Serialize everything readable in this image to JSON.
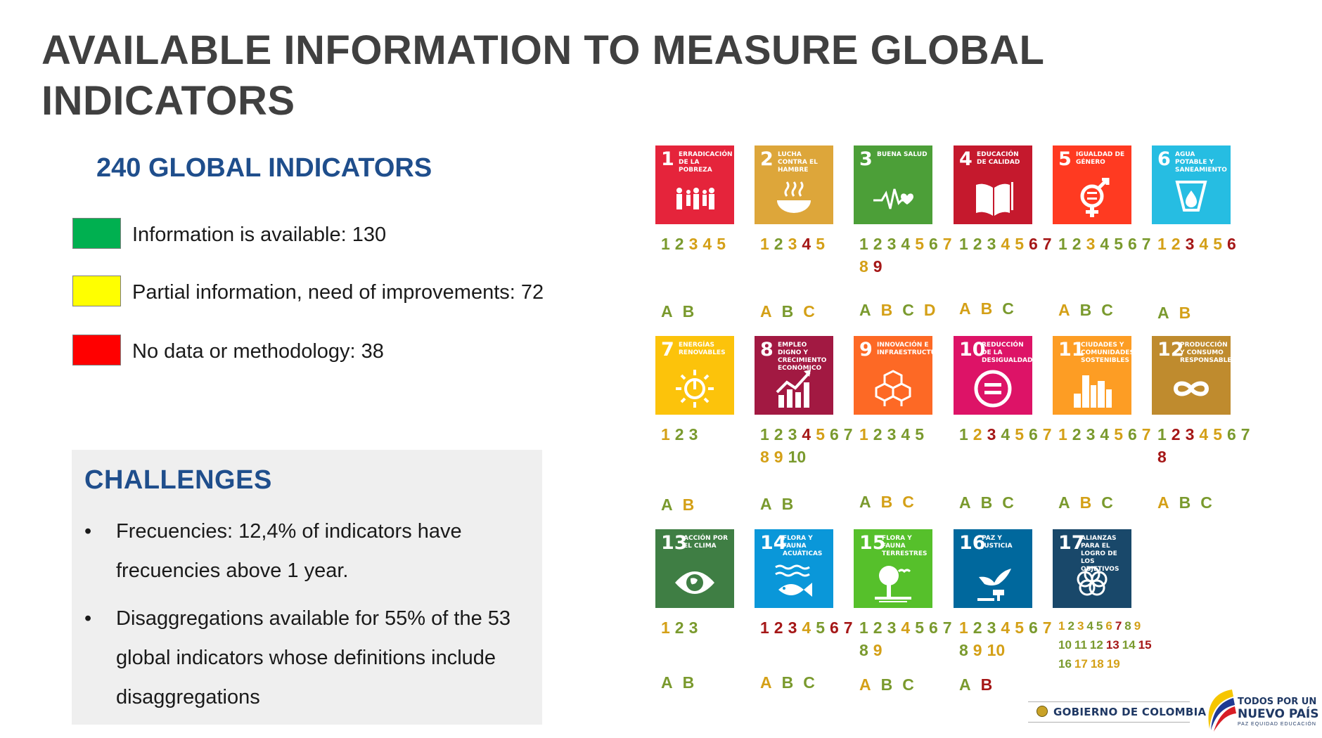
{
  "title": "AVAILABLE INFORMATION TO MEASURE GLOBAL INDICATORS",
  "subtitle": "240 GLOBAL INDICATORS",
  "colors": {
    "green": "#00b050",
    "yellow": "#ffff00",
    "red": "#ff0000",
    "g": "#7a9a2e",
    "y": "#d4a017",
    "r": "#a51717",
    "navy": "#1f4e8c"
  },
  "legend": [
    {
      "text": "Information is available: 130",
      "color": "#00b050"
    },
    {
      "text": "Partial information, need of improvements: 72",
      "color": "#ffff00"
    },
    {
      "text": "No data or methodology: 38",
      "color": "#ff0000"
    }
  ],
  "challenges": {
    "title": "CHALLENGES",
    "bullet": "•",
    "items": [
      "Frecuencies: 12,4% of indicators have frecuencies above 1 year.",
      "Disaggregations available for 55% of the 53 global indicators whose definitions include disaggregations"
    ]
  },
  "sdgs": [
    {
      "num": "1",
      "name": "Erradicación de la pobreza",
      "color": "#e5243b",
      "icon": "people-icon",
      "targets": [
        [
          "1",
          "g"
        ],
        [
          "2",
          "g"
        ],
        [
          "3",
          "y"
        ],
        [
          "4",
          "y"
        ],
        [
          "5",
          "y"
        ]
      ],
      "means": [
        [
          "A",
          "g"
        ],
        [
          "B",
          "g"
        ]
      ]
    },
    {
      "num": "2",
      "name": "Lucha contra el hambre",
      "color": "#dda63a",
      "icon": "bowl-icon",
      "targets": [
        [
          "1",
          "y"
        ],
        [
          "2",
          "g"
        ],
        [
          "3",
          "y"
        ],
        [
          "4",
          "r"
        ],
        [
          "5",
          "y"
        ]
      ],
      "means": [
        [
          "A",
          "y"
        ],
        [
          "B",
          "g"
        ],
        [
          "C",
          "y"
        ]
      ]
    },
    {
      "num": "3",
      "name": "Buena salud",
      "color": "#4c9f38",
      "icon": "heartbeat-icon",
      "targets": [
        [
          "1",
          "g"
        ],
        [
          "2",
          "g"
        ],
        [
          "3",
          "g"
        ],
        [
          "4",
          "g"
        ],
        [
          "5",
          "y"
        ],
        [
          "6",
          "g"
        ],
        [
          "7",
          "y"
        ],
        [
          "8",
          "y"
        ],
        [
          "9",
          "r"
        ]
      ],
      "means": [
        [
          "A",
          "g"
        ],
        [
          "B",
          "y"
        ],
        [
          "C",
          "g"
        ],
        [
          "D",
          "y"
        ]
      ]
    },
    {
      "num": "4",
      "name": "Educación de calidad",
      "color": "#c5192d",
      "icon": "book-icon",
      "targets": [
        [
          "1",
          "g"
        ],
        [
          "2",
          "g"
        ],
        [
          "3",
          "g"
        ],
        [
          "4",
          "y"
        ],
        [
          "5",
          "y"
        ],
        [
          "6",
          "r"
        ],
        [
          "7",
          "r"
        ]
      ],
      "means": [
        [
          "A",
          "y"
        ],
        [
          "B",
          "y"
        ],
        [
          "C",
          "g"
        ]
      ]
    },
    {
      "num": "5",
      "name": "Igualdad de género",
      "color": "#ff3a21",
      "icon": "gender-icon",
      "targets": [
        [
          "1",
          "g"
        ],
        [
          "2",
          "g"
        ],
        [
          "3",
          "y"
        ],
        [
          "4",
          "g"
        ],
        [
          "5",
          "g"
        ],
        [
          "6",
          "g"
        ],
        [
          "7",
          "g"
        ]
      ],
      "means": [
        [
          "A",
          "y"
        ],
        [
          "B",
          "g"
        ],
        [
          "C",
          "g"
        ]
      ]
    },
    {
      "num": "6",
      "name": "Agua potable y saneamiento",
      "color": "#26bde2",
      "icon": "water-drop-icon",
      "targets": [
        [
          "1",
          "y"
        ],
        [
          "2",
          "y"
        ],
        [
          "3",
          "r"
        ],
        [
          "4",
          "y"
        ],
        [
          "5",
          "y"
        ],
        [
          "6",
          "r"
        ]
      ],
      "means": [
        [
          "A",
          "g"
        ],
        [
          "B",
          "y"
        ]
      ]
    },
    {
      "num": "7",
      "name": "Energías renovables",
      "color": "#fcc30b",
      "icon": "sun-power-icon",
      "targets": [
        [
          "1",
          "y"
        ],
        [
          "2",
          "g"
        ],
        [
          "3",
          "g"
        ]
      ],
      "means": [
        [
          "A",
          "g"
        ],
        [
          "B",
          "y"
        ]
      ]
    },
    {
      "num": "8",
      "name": "Empleo digno y crecimiento económico",
      "color": "#a21942",
      "icon": "growth-chart-icon",
      "targets": [
        [
          "1",
          "g"
        ],
        [
          "2",
          "g"
        ],
        [
          "3",
          "g"
        ],
        [
          "4",
          "r"
        ],
        [
          "5",
          "y"
        ],
        [
          "6",
          "g"
        ],
        [
          "7",
          "g"
        ],
        [
          "8",
          "y"
        ],
        [
          "9",
          "y"
        ],
        [
          "10",
          "g"
        ]
      ],
      "means": [
        [
          "A",
          "g"
        ],
        [
          "B",
          "g"
        ]
      ]
    },
    {
      "num": "9",
      "name": "Innovación e infraestructuras",
      "color": "#fd6925",
      "icon": "cubes-icon",
      "targets": [
        [
          "1",
          "y"
        ],
        [
          "2",
          "g"
        ],
        [
          "3",
          "g"
        ],
        [
          "4",
          "g"
        ],
        [
          "5",
          "g"
        ]
      ],
      "means": [
        [
          "A",
          "g"
        ],
        [
          "B",
          "y"
        ],
        [
          "C",
          "y"
        ]
      ]
    },
    {
      "num": "10",
      "name": "Reducción de la desigualdad",
      "color": "#dd1367",
      "icon": "equal-icon",
      "targets": [
        [
          "1",
          "g"
        ],
        [
          "2",
          "y"
        ],
        [
          "3",
          "r"
        ],
        [
          "4",
          "g"
        ],
        [
          "5",
          "y"
        ],
        [
          "6",
          "g"
        ],
        [
          "7",
          "y"
        ]
      ],
      "means": [
        [
          "A",
          "g"
        ],
        [
          "B",
          "g"
        ],
        [
          "C",
          "g"
        ]
      ]
    },
    {
      "num": "11",
      "name": "Ciudades y comunidades sostenibles",
      "color": "#fd9d24",
      "icon": "city-icon",
      "targets": [
        [
          "1",
          "y"
        ],
        [
          "2",
          "g"
        ],
        [
          "3",
          "g"
        ],
        [
          "4",
          "g"
        ],
        [
          "5",
          "y"
        ],
        [
          "6",
          "g"
        ],
        [
          "7",
          "y"
        ]
      ],
      "means": [
        [
          "A",
          "g"
        ],
        [
          "B",
          "y"
        ],
        [
          "C",
          "g"
        ]
      ]
    },
    {
      "num": "12",
      "name": "Producción y consumo responsables",
      "color": "#bf8b2e",
      "icon": "infinity-icon",
      "targets": [
        [
          "1",
          "g"
        ],
        [
          "2",
          "r"
        ],
        [
          "3",
          "r"
        ],
        [
          "4",
          "y"
        ],
        [
          "5",
          "y"
        ],
        [
          "6",
          "g"
        ],
        [
          "7",
          "g"
        ],
        [
          "8",
          "r"
        ]
      ],
      "means": [
        [
          "A",
          "y"
        ],
        [
          "B",
          "g"
        ],
        [
          "C",
          "g"
        ]
      ]
    },
    {
      "num": "13",
      "name": "Acción por el clima",
      "color": "#3f7e44",
      "icon": "eye-globe-icon",
      "targets": [
        [
          "1",
          "y"
        ],
        [
          "2",
          "g"
        ],
        [
          "3",
          "g"
        ]
      ],
      "means": [
        [
          "A",
          "g"
        ],
        [
          "B",
          "g"
        ]
      ]
    },
    {
      "num": "14",
      "name": "Flora y fauna acuáticas",
      "color": "#0a97d9",
      "icon": "fish-icon",
      "targets": [
        [
          "1",
          "r"
        ],
        [
          "2",
          "r"
        ],
        [
          "3",
          "r"
        ],
        [
          "4",
          "y"
        ],
        [
          "5",
          "g"
        ],
        [
          "6",
          "r"
        ],
        [
          "7",
          "r"
        ]
      ],
      "means": [
        [
          "A",
          "y"
        ],
        [
          "B",
          "g"
        ],
        [
          "C",
          "g"
        ]
      ]
    },
    {
      "num": "15",
      "name": "Flora y fauna terrestres",
      "color": "#56c02b",
      "icon": "tree-bird-icon",
      "targets": [
        [
          "1",
          "g"
        ],
        [
          "2",
          "g"
        ],
        [
          "3",
          "g"
        ],
        [
          "4",
          "y"
        ],
        [
          "5",
          "g"
        ],
        [
          "6",
          "g"
        ],
        [
          "7",
          "g"
        ],
        [
          "8",
          "g"
        ],
        [
          "9",
          "y"
        ]
      ],
      "means": [
        [
          "A",
          "y"
        ],
        [
          "B",
          "g"
        ],
        [
          "C",
          "g"
        ]
      ]
    },
    {
      "num": "16",
      "name": "Paz y justicia",
      "color": "#00689d",
      "icon": "dove-gavel-icon",
      "targets": [
        [
          "1",
          "y"
        ],
        [
          "2",
          "g"
        ],
        [
          "3",
          "g"
        ],
        [
          "4",
          "y"
        ],
        [
          "5",
          "y"
        ],
        [
          "6",
          "g"
        ],
        [
          "7",
          "y"
        ],
        [
          "8",
          "g"
        ],
        [
          "9",
          "y"
        ],
        [
          "10",
          "y"
        ]
      ],
      "means": [
        [
          "A",
          "g"
        ],
        [
          "B",
          "r"
        ]
      ]
    },
    {
      "num": "17",
      "name": "Alianzas para el logro de los objetivos",
      "color": "#19486a",
      "icon": "flower-rings-icon",
      "small": true,
      "targets": [
        [
          "1",
          "y"
        ],
        [
          "2",
          "g"
        ],
        [
          "3",
          "y"
        ],
        [
          "4",
          "g"
        ],
        [
          "5",
          "g"
        ],
        [
          "6",
          "y"
        ],
        [
          "7",
          "r"
        ],
        [
          "8",
          "g"
        ],
        [
          "9",
          "y"
        ],
        [
          "10",
          "g"
        ],
        [
          "11",
          "g"
        ],
        [
          "12",
          "g"
        ],
        [
          "13",
          "r"
        ],
        [
          "14",
          "g"
        ],
        [
          "15",
          "r"
        ],
        [
          "16",
          "g"
        ],
        [
          "17",
          "y"
        ],
        [
          "18",
          "y"
        ],
        [
          "19",
          "y"
        ]
      ],
      "means": []
    }
  ],
  "footer": {
    "government": "GOBIERNO DE COLOMBIA",
    "slogan_top": "TODOS POR UN",
    "slogan_main": "NUEVO PAÍS",
    "slogan_sub": "PAZ  EQUIDAD  EDUCACIÓN"
  }
}
